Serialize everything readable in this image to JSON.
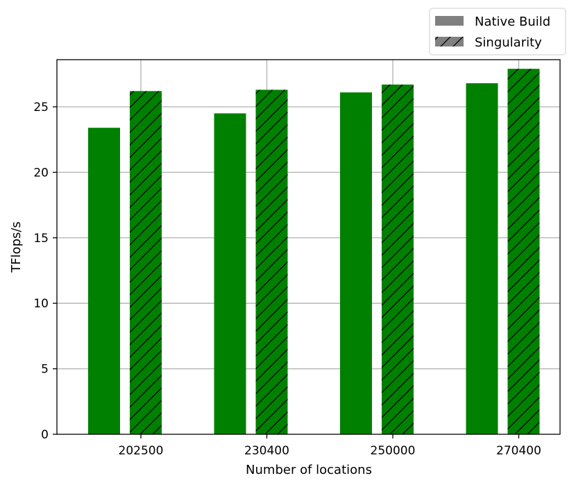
{
  "chart_data": {
    "type": "bar",
    "title": "",
    "xlabel": "Number of locations",
    "ylabel": "TFlops/s",
    "ylim": [
      0,
      28.6
    ],
    "yticks": [
      0,
      5,
      10,
      15,
      20,
      25
    ],
    "categories": [
      "202500",
      "230400",
      "250000",
      "270400"
    ],
    "grid": true,
    "legend_position": "top-right, above plot",
    "colors": {
      "bar": "#008000",
      "hatch": "#000000",
      "legend_swatch": "#808080"
    },
    "series": [
      {
        "name": "Native Build",
        "values": [
          23.4,
          24.5,
          26.1,
          26.8
        ],
        "hatch": false
      },
      {
        "name": "Singularity",
        "values": [
          26.2,
          26.3,
          26.7,
          27.9
        ],
        "hatch": true
      }
    ]
  }
}
